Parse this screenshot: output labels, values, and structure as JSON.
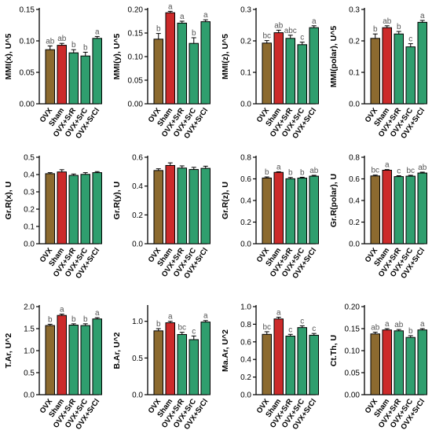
{
  "colors": {
    "OVX": "#8c6a2f",
    "Sham": "#cc2a2a",
    "OVX+SrR": "#2f9e6e",
    "OVX+SrC": "#2f9e6e",
    "OVX+SrCl": "#2f9e6e",
    "axis": "#000000",
    "letters": "#555555"
  },
  "chart_data": [
    {
      "type": "bar",
      "ylabel": "MMI(x), U^5",
      "ylim": [
        0,
        0.15
      ],
      "yticks": [
        0.0,
        0.05,
        0.1,
        0.15
      ],
      "ytick_labels": [
        "0.00",
        "0.05",
        "0.10",
        "0.15"
      ],
      "categories": [
        "OVX",
        "Sham",
        "OVX+SrR",
        "OVX+SrC",
        "OVX+SrCl"
      ],
      "values": [
        0.086,
        0.093,
        0.081,
        0.076,
        0.104
      ],
      "errors": [
        0.006,
        0.003,
        0.005,
        0.006,
        0.003
      ],
      "annotations": [
        "ab",
        "ab",
        "b",
        "b",
        "a"
      ]
    },
    {
      "type": "bar",
      "ylabel": "MMI(y), U^5",
      "ylim": [
        0,
        0.2
      ],
      "yticks": [
        0.0,
        0.05,
        0.1,
        0.15,
        0.2
      ],
      "ytick_labels": [
        "0.00",
        "0.05",
        "0.10",
        "0.15",
        "0.20"
      ],
      "categories": [
        "OVX",
        "Sham",
        "OVX+SrR",
        "OVX+SrC",
        "OVX+SrCl"
      ],
      "values": [
        0.137,
        0.193,
        0.171,
        0.128,
        0.174
      ],
      "errors": [
        0.012,
        0.003,
        0.004,
        0.012,
        0.004
      ],
      "annotations": [
        "b",
        "a",
        "a",
        "b",
        "a"
      ]
    },
    {
      "type": "bar",
      "ylabel": "MMI(z), U^5",
      "ylim": [
        0,
        0.3
      ],
      "yticks": [
        0.0,
        0.1,
        0.2,
        0.3
      ],
      "ytick_labels": [
        "0.0",
        "0.1",
        "0.2",
        "0.3"
      ],
      "categories": [
        "OVX",
        "Sham",
        "OVX+SrR",
        "OVX+SrC",
        "OVX+SrCl"
      ],
      "values": [
        0.193,
        0.226,
        0.208,
        0.188,
        0.242
      ],
      "errors": [
        0.008,
        0.008,
        0.01,
        0.008,
        0.006
      ],
      "annotations": [
        "bc",
        "ab",
        "abc",
        "c",
        "a"
      ]
    },
    {
      "type": "bar",
      "ylabel": "MMI(polar), U^5",
      "ylim": [
        0,
        0.3
      ],
      "yticks": [
        0.0,
        0.1,
        0.2,
        0.3
      ],
      "ytick_labels": [
        "0.0",
        "0.1",
        "0.2",
        "0.3"
      ],
      "categories": [
        "OVX",
        "Sham",
        "OVX+SrR",
        "OVX+SrC",
        "OVX+SrCl"
      ],
      "values": [
        0.208,
        0.242,
        0.222,
        0.181,
        0.259
      ],
      "errors": [
        0.014,
        0.006,
        0.008,
        0.01,
        0.006
      ],
      "annotations": [
        "b",
        "ab",
        "b",
        "c",
        "a"
      ]
    },
    {
      "type": "bar",
      "ylabel": "Gr.R(x), U",
      "ylim": [
        0,
        0.5
      ],
      "yticks": [
        0.0,
        0.1,
        0.2,
        0.3,
        0.4,
        0.5
      ],
      "ytick_labels": [
        "0.0",
        "0.1",
        "0.2",
        "0.3",
        "0.4",
        "0.5"
      ],
      "categories": [
        "OVX",
        "Sham",
        "OVX+SrR",
        "OVX+SrC",
        "OVX+SrCl"
      ],
      "values": [
        0.405,
        0.415,
        0.395,
        0.401,
        0.411
      ],
      "errors": [
        0.006,
        0.013,
        0.008,
        0.01,
        0.006
      ],
      "annotations": [
        "",
        "",
        "",
        "",
        ""
      ]
    },
    {
      "type": "bar",
      "ylabel": "Gr.R(y), U",
      "ylim": [
        0,
        0.6
      ],
      "yticks": [
        0.0,
        0.2,
        0.4,
        0.6
      ],
      "ytick_labels": [
        "0.0",
        "0.2",
        "0.4",
        "0.6"
      ],
      "categories": [
        "OVX",
        "Sham",
        "OVX+SrR",
        "OVX+SrC",
        "OVX+SrCl"
      ],
      "values": [
        0.508,
        0.543,
        0.525,
        0.515,
        0.523
      ],
      "errors": [
        0.012,
        0.018,
        0.015,
        0.015,
        0.015
      ],
      "annotations": [
        "",
        "",
        "",
        "",
        ""
      ]
    },
    {
      "type": "bar",
      "ylabel": "Gr.R(z), U",
      "ylim": [
        0,
        0.8
      ],
      "yticks": [
        0.0,
        0.2,
        0.4,
        0.6,
        0.8
      ],
      "ytick_labels": [
        "0.0",
        "0.2",
        "0.4",
        "0.6",
        "0.8"
      ],
      "categories": [
        "OVX",
        "Sham",
        "OVX+SrR",
        "OVX+SrC",
        "OVX+SrCl"
      ],
      "values": [
        0.608,
        0.66,
        0.601,
        0.607,
        0.625
      ],
      "errors": [
        0.01,
        0.006,
        0.012,
        0.008,
        0.008
      ],
      "annotations": [
        "b",
        "a",
        "b",
        "b",
        "ab"
      ]
    },
    {
      "type": "bar",
      "ylabel": "Gr.R(polar), U",
      "ylim": [
        0,
        0.8
      ],
      "yticks": [
        0.0,
        0.2,
        0.4,
        0.6,
        0.8
      ],
      "ytick_labels": [
        "0.0",
        "0.2",
        "0.4",
        "0.6",
        "0.8"
      ],
      "categories": [
        "OVX",
        "Sham",
        "OVX+SrR",
        "OVX+SrC",
        "OVX+SrCl"
      ],
      "values": [
        0.627,
        0.68,
        0.621,
        0.625,
        0.654
      ],
      "errors": [
        0.008,
        0.006,
        0.008,
        0.008,
        0.008
      ],
      "annotations": [
        "bc",
        "a",
        "c",
        "bc",
        "ab"
      ]
    },
    {
      "type": "bar",
      "ylabel": "T.Ar, U^2",
      "ylim": [
        0,
        2.0
      ],
      "yticks": [
        0.0,
        0.5,
        1.0,
        1.5,
        2.0
      ],
      "ytick_labels": [
        "0.0",
        "0.5",
        "1.0",
        "1.5",
        "2.0"
      ],
      "categories": [
        "OVX",
        "Sham",
        "OVX+SrR",
        "OVX+SrC",
        "OVX+SrCl"
      ],
      "values": [
        1.57,
        1.8,
        1.58,
        1.57,
        1.72
      ],
      "errors": [
        0.03,
        0.03,
        0.03,
        0.04,
        0.03
      ],
      "annotations": [
        "b",
        "a",
        "b",
        "b",
        "a"
      ]
    },
    {
      "type": "bar",
      "ylabel": "B.Ar, U^2",
      "ylim": [
        0,
        1.2
      ],
      "yticks": [
        0.0,
        0.5,
        1.0
      ],
      "ytick_labels": [
        "0.0",
        "0.5",
        "1.0"
      ],
      "categories": [
        "OVX",
        "Sham",
        "OVX+SrR",
        "OVX+SrC",
        "OVX+SrCl"
      ],
      "values": [
        0.87,
        0.98,
        0.82,
        0.75,
        0.99
      ],
      "errors": [
        0.03,
        0.02,
        0.03,
        0.05,
        0.02
      ],
      "annotations": [
        "b",
        "a",
        "bc",
        "c",
        "a"
      ]
    },
    {
      "type": "bar",
      "ylabel": "Ma.Ar, U^2",
      "ylim": [
        0,
        1.0
      ],
      "yticks": [
        0.0,
        0.2,
        0.4,
        0.6,
        0.8,
        1.0
      ],
      "ytick_labels": [
        "0.0",
        "0.2",
        "0.4",
        "0.6",
        "0.8",
        "1.0"
      ],
      "categories": [
        "OVX",
        "Sham",
        "OVX+SrR",
        "OVX+SrC",
        "OVX+SrCl"
      ],
      "values": [
        0.685,
        0.86,
        0.665,
        0.762,
        0.675
      ],
      "errors": [
        0.03,
        0.02,
        0.02,
        0.02,
        0.02
      ],
      "annotations": [
        "bc",
        "a",
        "c",
        "c",
        "c"
      ]
    },
    {
      "type": "bar",
      "ylabel": "Ct.Th, U",
      "ylim": [
        0,
        0.2
      ],
      "yticks": [
        0.0,
        0.05,
        0.1,
        0.15,
        0.2
      ],
      "ytick_labels": [
        "0.00",
        "0.05",
        "0.10",
        "0.15",
        "0.20"
      ],
      "categories": [
        "OVX",
        "Sham",
        "OVX+SrR",
        "OVX+SrC",
        "OVX+SrCl"
      ],
      "values": [
        0.138,
        0.147,
        0.145,
        0.13,
        0.147
      ],
      "errors": [
        0.004,
        0.003,
        0.003,
        0.004,
        0.003
      ],
      "annotations": [
        "ab",
        "a",
        "ab",
        "b",
        "a"
      ]
    }
  ]
}
